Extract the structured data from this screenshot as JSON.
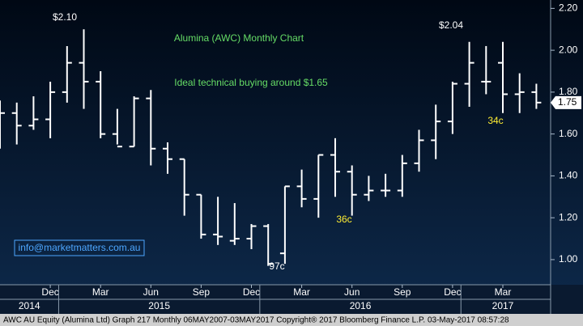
{
  "chart_data": {
    "type": "ohlc",
    "title": "Alumina (AWC) Monthly Chart",
    "subtitle": "Ideal technical buying around $1.65",
    "color": "#ffffff",
    "categories": [
      "Sep 2014",
      "Oct 2014",
      "Nov 2014",
      "Dec 2014",
      "Jan 2015",
      "Feb 2015",
      "Mar 2015",
      "Apr 2015",
      "May 2015",
      "Jun 2015",
      "Jul 2015",
      "Aug 2015",
      "Sep 2015",
      "Oct 2015",
      "Nov 2015",
      "Dec 2015",
      "Jan 2016",
      "Feb 2016",
      "Mar 2016",
      "Apr 2016",
      "May 2016",
      "Jun 2016",
      "Jul 2016",
      "Aug 2016",
      "Sep 2016",
      "Oct 2016",
      "Nov 2016",
      "Dec 2016",
      "Jan 2017",
      "Feb 2017",
      "Mar 2017",
      "Apr 2017",
      "May 2017"
    ],
    "open": [
      1.72,
      1.7,
      1.64,
      1.67,
      1.8,
      1.94,
      1.85,
      1.6,
      1.54,
      1.77,
      1.53,
      1.48,
      1.31,
      1.12,
      1.09,
      1.1,
      1.16,
      1.03,
      1.35,
      1.29,
      1.5,
      1.42,
      1.31,
      1.33,
      1.33,
      1.46,
      1.57,
      1.66,
      1.84,
      1.85,
      1.94,
      1.79,
      1.8
    ],
    "high": [
      1.76,
      1.75,
      1.78,
      1.85,
      2.02,
      2.1,
      1.9,
      1.72,
      1.78,
      1.81,
      1.56,
      1.48,
      1.31,
      1.3,
      1.27,
      1.17,
      1.17,
      1.35,
      1.43,
      1.5,
      1.58,
      1.45,
      1.4,
      1.41,
      1.5,
      1.62,
      1.74,
      1.85,
      2.04,
      2.02,
      2.04,
      1.89,
      1.84
    ],
    "low": [
      1.53,
      1.55,
      1.62,
      1.58,
      1.75,
      1.72,
      1.58,
      1.55,
      1.54,
      1.45,
      1.41,
      1.21,
      1.1,
      1.07,
      1.07,
      1.05,
      0.97,
      0.98,
      1.25,
      1.2,
      1.3,
      1.21,
      1.28,
      1.3,
      1.3,
      1.42,
      1.48,
      1.6,
      1.73,
      1.79,
      1.7,
      1.7,
      1.72
    ],
    "close": [
      1.7,
      1.64,
      1.67,
      1.8,
      1.94,
      1.85,
      1.6,
      1.54,
      1.77,
      1.53,
      1.48,
      1.31,
      1.12,
      1.11,
      1.1,
      1.16,
      0.98,
      1.35,
      1.29,
      1.5,
      1.42,
      1.31,
      1.33,
      1.33,
      1.46,
      1.57,
      1.66,
      1.84,
      1.94,
      1.85,
      1.79,
      1.8,
      1.75
    ],
    "ylim": [
      0.88,
      2.24
    ],
    "yticks": [
      {
        "value": 1.0,
        "label": "1.00"
      },
      {
        "value": 1.2,
        "label": "1.20"
      },
      {
        "value": 1.4,
        "label": "1.40"
      },
      {
        "value": 1.6,
        "label": "1.60"
      },
      {
        "value": 1.8,
        "label": "1.80"
      },
      {
        "value": 2.0,
        "label": "2.00"
      },
      {
        "value": 2.2,
        "label": "2.20"
      }
    ],
    "xticks": [
      {
        "value": "Dec 2014",
        "label": "Dec"
      },
      {
        "value": "Mar 2015",
        "label": "Mar"
      },
      {
        "value": "Jun 2015",
        "label": "Jun"
      },
      {
        "value": "Sep 2015",
        "label": "Sep"
      },
      {
        "value": "Dec 2015",
        "label": "Dec"
      },
      {
        "value": "Mar 2016",
        "label": "Mar"
      },
      {
        "value": "Jun 2016",
        "label": "Jun"
      },
      {
        "value": "Sep 2016",
        "label": "Sep"
      },
      {
        "value": "Dec 2016",
        "label": "Dec"
      },
      {
        "value": "Mar 2017",
        "label": "Mar"
      }
    ],
    "years": [
      "2014",
      "2015",
      "2016",
      "2017"
    ],
    "annotations": [
      "$2.10",
      "$2.04",
      "97c",
      "36c",
      "34c"
    ],
    "watermark": "info@marketmatters.com.au",
    "footer": "AWC AU Equity (Alumina Ltd) Graph 217  Monthly 06MAY2007-03MAY2017  Copyright® 2017 Bloomberg Finance L.P.  03-May-2017 08:57:28"
  }
}
